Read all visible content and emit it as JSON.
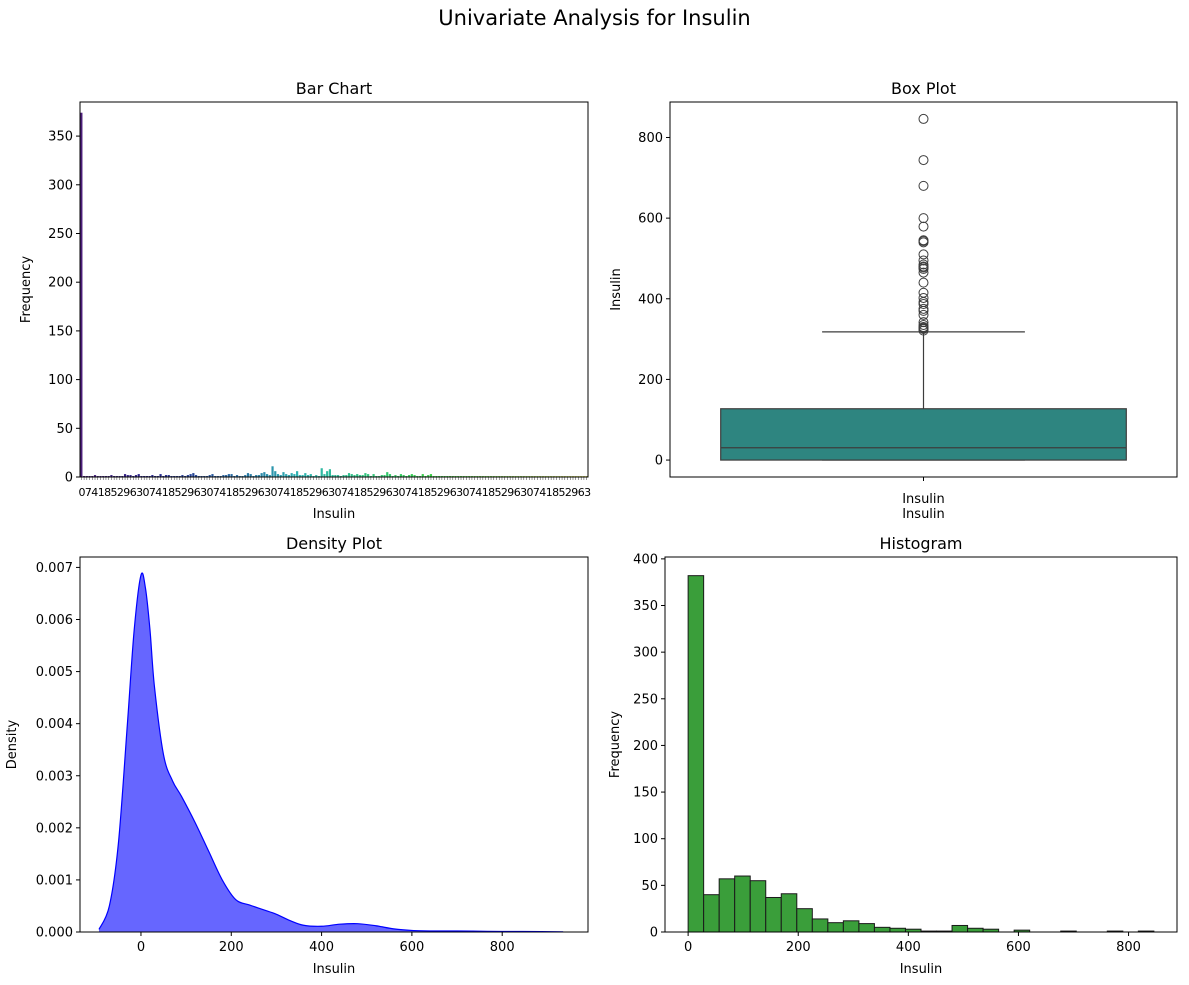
{
  "figure": {
    "suptitle": "Univariate Analysis for Insulin"
  },
  "chart_data": [
    {
      "type": "bar",
      "title": "Bar Chart",
      "xlabel": "Insulin",
      "ylabel": "Frequency",
      "ylim": [
        0,
        385
      ],
      "yticks": [
        0,
        50,
        100,
        150,
        200,
        250,
        300,
        350
      ],
      "n_categories": 186,
      "note_xticks": "186 overlapping category tick labels (unique Insulin values), unreadable",
      "values": [
        374,
        1,
        1,
        1,
        1,
        2,
        1,
        1,
        1,
        1,
        1,
        2,
        1,
        1,
        1,
        1,
        3,
        2,
        2,
        1,
        2,
        3,
        1,
        1,
        1,
        1,
        2,
        1,
        1,
        3,
        1,
        2,
        2,
        1,
        1,
        1,
        1,
        2,
        1,
        2,
        3,
        4,
        2,
        1,
        1,
        1,
        1,
        2,
        3,
        1,
        1,
        1,
        2,
        2,
        3,
        3,
        1,
        2,
        1,
        1,
        2,
        4,
        3,
        1,
        2,
        2,
        4,
        5,
        3,
        2,
        11,
        6,
        3,
        2,
        5,
        3,
        2,
        4,
        3,
        6,
        2,
        2,
        4,
        2,
        3,
        1,
        2,
        1,
        9,
        3,
        6,
        8,
        2,
        2,
        2,
        1,
        2,
        2,
        4,
        3,
        2,
        3,
        2,
        2,
        4,
        3,
        1,
        3,
        1,
        1,
        2,
        2,
        5,
        3,
        1,
        2,
        1,
        3,
        2,
        1,
        2,
        3,
        2,
        1,
        1,
        3,
        1,
        2,
        3,
        1,
        1,
        1,
        1,
        1,
        1,
        1,
        1,
        1,
        1,
        1,
        1,
        1,
        1,
        1,
        1,
        1,
        1,
        1,
        1,
        1,
        1,
        1,
        1,
        1,
        1,
        1,
        1,
        1,
        1,
        1,
        1,
        1,
        1,
        1,
        1,
        1,
        1,
        1,
        1,
        1,
        1,
        1,
        1,
        1,
        1,
        1,
        1,
        1,
        1,
        1,
        1,
        1,
        1,
        1,
        1,
        1
      ]
    },
    {
      "type": "box",
      "title": "Box Plot",
      "xlabel": "Insulin",
      "ylabel": "Insulin",
      "ylim": [
        -42,
        888
      ],
      "yticks": [
        0,
        200,
        400,
        600,
        800
      ],
      "stats": {
        "min": 0,
        "q1": 0,
        "median": 30.5,
        "q3": 127.25,
        "whisker_high": 318
      },
      "outliers": [
        321,
        325,
        326,
        328,
        330,
        335,
        342,
        360,
        370,
        375,
        387,
        392,
        402,
        415,
        440,
        465,
        474,
        478,
        480,
        485,
        495,
        510,
        540,
        543,
        545,
        579,
        600,
        680,
        744,
        846
      ],
      "color": "#2e8580"
    },
    {
      "type": "area",
      "title": "Density Plot",
      "xlabel": "Insulin",
      "ylabel": "Density",
      "xlim": [
        -135,
        990
      ],
      "ylim": [
        0,
        0.0072
      ],
      "xticks": [
        0,
        200,
        400,
        600,
        800
      ],
      "yticks": [
        0,
        0.001,
        0.002,
        0.003,
        0.004,
        0.005,
        0.006,
        0.007
      ],
      "x": [
        -93,
        -70,
        -50,
        -30,
        -15,
        0,
        10,
        20,
        30,
        50,
        70,
        90,
        120,
        150,
        180,
        210,
        240,
        270,
        300,
        330,
        360,
        400,
        440,
        480,
        520,
        560,
        600,
        650,
        700,
        750,
        800,
        846,
        935
      ],
      "y": [
        5e-05,
        0.0005,
        0.0017,
        0.004,
        0.0058,
        0.00685,
        0.0066,
        0.0058,
        0.0047,
        0.0034,
        0.0029,
        0.0026,
        0.0021,
        0.00155,
        0.001,
        0.00062,
        0.00052,
        0.00043,
        0.00034,
        0.00022,
        0.00013,
        0.00011,
        0.00015,
        0.00016,
        0.00012,
        6e-05,
        3e-05,
        2e-05,
        2e-05,
        1.5e-05,
        1e-05,
        1e-05,
        2e-06
      ],
      "color": "#0000ff"
    },
    {
      "type": "bar",
      "title": "Histogram",
      "xlabel": "Insulin",
      "ylabel": "Frequency",
      "xlim": [
        -42,
        888
      ],
      "ylim": [
        0,
        402
      ],
      "xticks": [
        0,
        200,
        400,
        600,
        800
      ],
      "yticks": [
        0,
        50,
        100,
        150,
        200,
        250,
        300,
        350,
        400
      ],
      "bin_width": 28.2,
      "bin_start": 0,
      "values": [
        382,
        40,
        57,
        60,
        55,
        37,
        41,
        25,
        14,
        10,
        12,
        9,
        5,
        4,
        3,
        1,
        1,
        7,
        4,
        3,
        0,
        2,
        0,
        0,
        1,
        0,
        0,
        1,
        0,
        1
      ],
      "color": "#3a9e3a"
    }
  ]
}
